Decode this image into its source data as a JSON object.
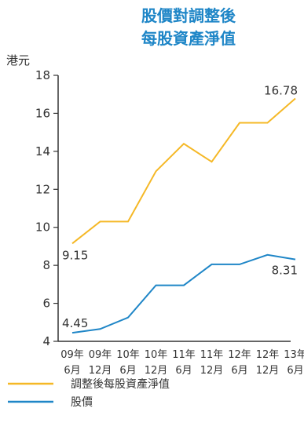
{
  "chart_data": {
    "type": "line",
    "title": [
      "股價對調整後",
      "每股資產淨值"
    ],
    "ylabel": "港元",
    "ylim": [
      4,
      18
    ],
    "yticks": [
      4,
      6,
      8,
      10,
      12,
      14,
      16,
      18
    ],
    "categories": [
      [
        "09年",
        "6月"
      ],
      [
        "09年",
        "12月"
      ],
      [
        "10年",
        "6月"
      ],
      [
        "10年",
        "12月"
      ],
      [
        "11年",
        "6月"
      ],
      [
        "11年",
        "12月"
      ],
      [
        "12年",
        "6月"
      ],
      [
        "12年",
        "12月"
      ],
      [
        "13年",
        "6月"
      ]
    ],
    "series": [
      {
        "name": "調整後每股資產淨值",
        "color": "#f5b826",
        "values": [
          9.15,
          10.3,
          10.3,
          12.95,
          14.4,
          13.45,
          15.5,
          15.5,
          16.78
        ],
        "labels": {
          "first": "9.15",
          "last": "16.78"
        }
      },
      {
        "name": "股價",
        "color": "#1f86c7",
        "values": [
          4.45,
          4.65,
          5.25,
          6.95,
          6.95,
          8.05,
          8.05,
          8.55,
          8.31
        ],
        "labels": {
          "first": "4.45",
          "last": "8.31"
        }
      }
    ],
    "title_color": "#1f86c7",
    "grid": false,
    "legend_position": "bottom-left"
  }
}
